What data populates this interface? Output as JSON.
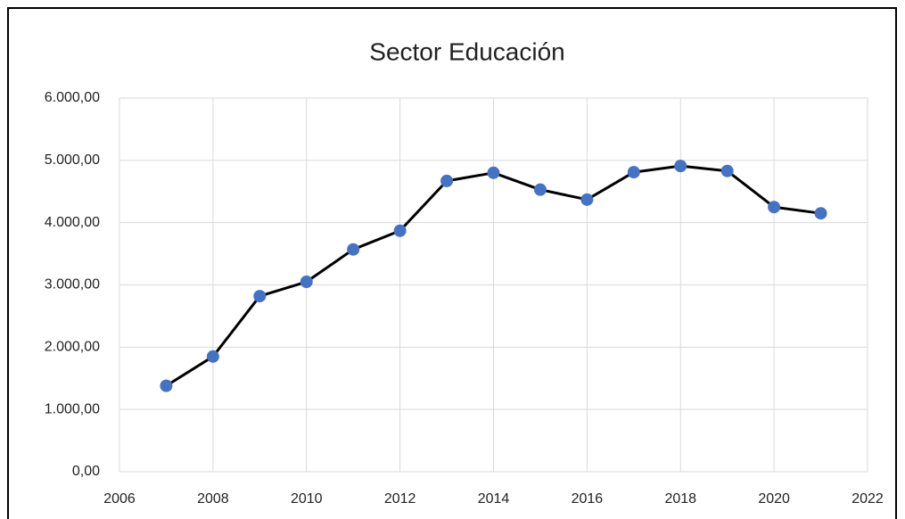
{
  "chart_data": {
    "type": "line",
    "title": "Sector Educación",
    "x": [
      2007,
      2008,
      2009,
      2010,
      2011,
      2012,
      2013,
      2014,
      2015,
      2016,
      2017,
      2018,
      2019,
      2020,
      2021
    ],
    "values": [
      1380,
      1850,
      2820,
      3050,
      3570,
      3870,
      4670,
      4800,
      4530,
      4370,
      4810,
      4910,
      4830,
      4250,
      4150
    ],
    "line_color": "#000000",
    "marker_color": "#4472c4",
    "xlim": [
      2006,
      2022
    ],
    "xticks": [
      2006,
      2008,
      2010,
      2012,
      2014,
      2016,
      2018,
      2020,
      2022
    ],
    "ylim": [
      0,
      6000
    ],
    "yticks": [
      {
        "value": 0,
        "label": "0,00"
      },
      {
        "value": 1000,
        "label": "1.000,00"
      },
      {
        "value": 2000,
        "label": "2.000,00"
      },
      {
        "value": 3000,
        "label": "3.000,00"
      },
      {
        "value": 4000,
        "label": "4.000,00"
      },
      {
        "value": 5000,
        "label": "5.000,00"
      },
      {
        "value": 6000,
        "label": "6.000,00"
      }
    ],
    "grid": true
  }
}
